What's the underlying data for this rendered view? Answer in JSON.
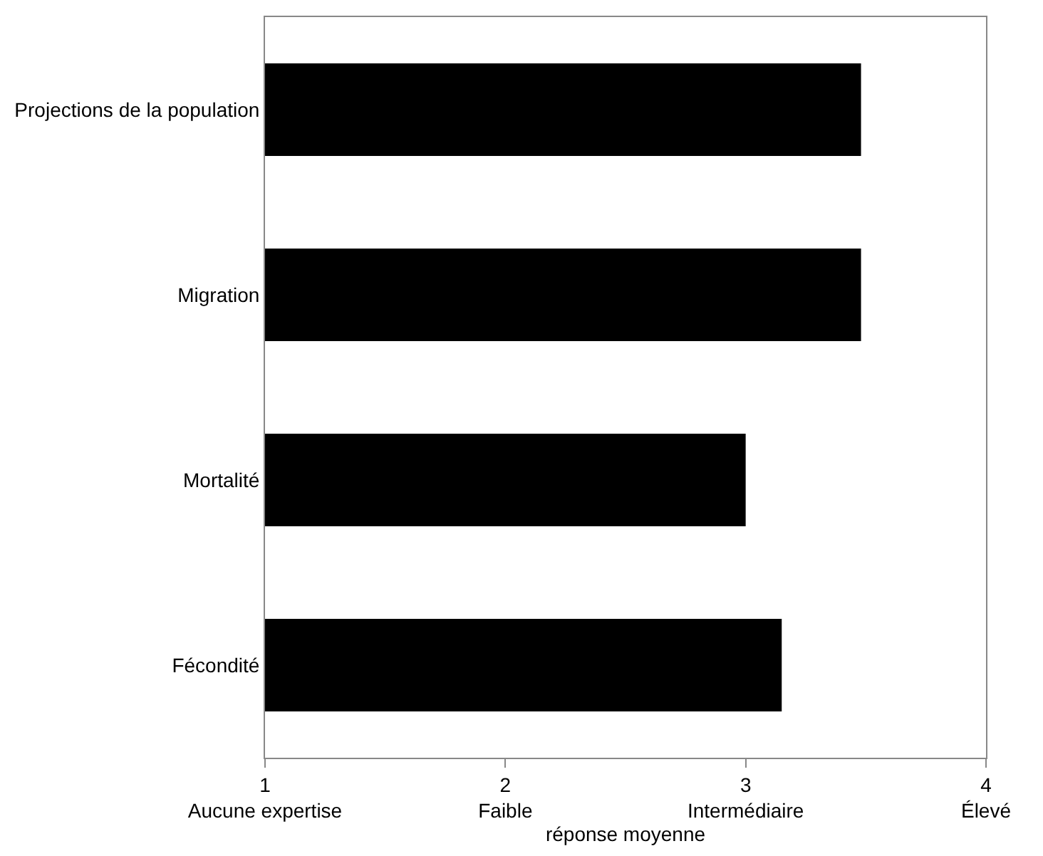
{
  "chart_data": {
    "type": "bar",
    "orientation": "horizontal",
    "xlabel": "réponse moyenne",
    "categories": [
      "Projections de la population",
      "Migration",
      "Mortalité",
      "Fécondité"
    ],
    "values": [
      3.48,
      3.48,
      3.0,
      3.15
    ],
    "color": "#000000",
    "xlim": [
      1,
      4
    ],
    "xticks": [
      {
        "value": 1,
        "label": "1\nAucune expertise"
      },
      {
        "value": 2,
        "label": "2\nFaible"
      },
      {
        "value": 3,
        "label": "3\nIntermédiaire"
      },
      {
        "value": 4,
        "label": "4\nÉlevé"
      }
    ],
    "grid": false
  }
}
